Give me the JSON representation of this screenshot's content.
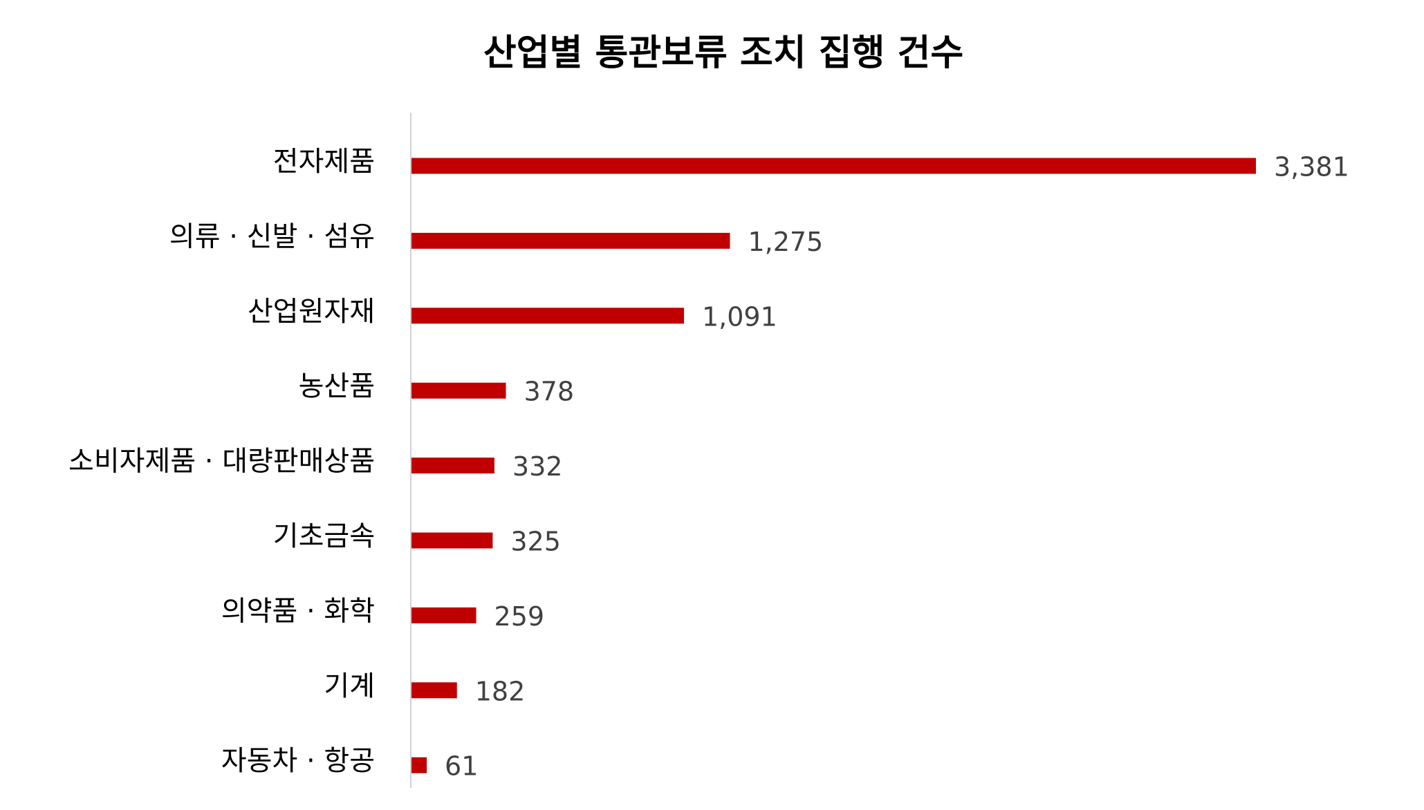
{
  "chart_data": {
    "type": "hbar",
    "title": "산업별 통관보류 조치 집행 건수",
    "categories": [
      "전자제품",
      "의류 · 신발 · 섬유",
      "산업원자재",
      "농산품",
      "소비자제품 · 대량판매상품",
      "기초금속",
      "의약품 · 화학",
      "기계",
      "자동차 · 항공"
    ],
    "values": [
      3381,
      1275,
      1091,
      378,
      332,
      325,
      259,
      182,
      61
    ],
    "value_labels": [
      "3,381",
      "1,275",
      "1,091",
      "378",
      "332",
      "325",
      "259",
      "182",
      "61"
    ],
    "color": "#c00000"
  }
}
